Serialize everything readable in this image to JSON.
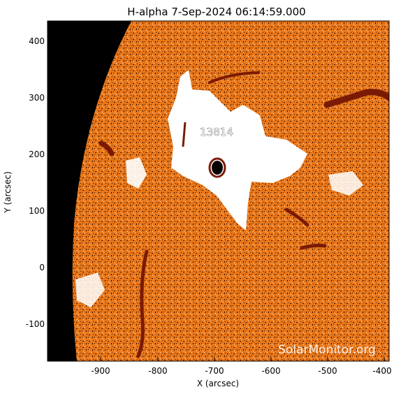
{
  "title": "H-alpha  7-Sep-2024 06:14:59.000",
  "x_axis": {
    "label": "X (arcsec)",
    "ticks": [
      "-900",
      "-800",
      "-700",
      "-600",
      "-500",
      "-400"
    ]
  },
  "y_axis": {
    "label": "Y (arcsec)",
    "ticks": [
      "400",
      "300",
      "200",
      "100",
      "0",
      "-100"
    ]
  },
  "region_label": "13814",
  "watermark": "SolarMonitor.org",
  "colors": {
    "background": "#ffffff",
    "space": "#000000",
    "disk_base": "#e8771a",
    "plage": "#ffffff",
    "filament": "#7a1a05",
    "sunspot": "#050000"
  }
}
